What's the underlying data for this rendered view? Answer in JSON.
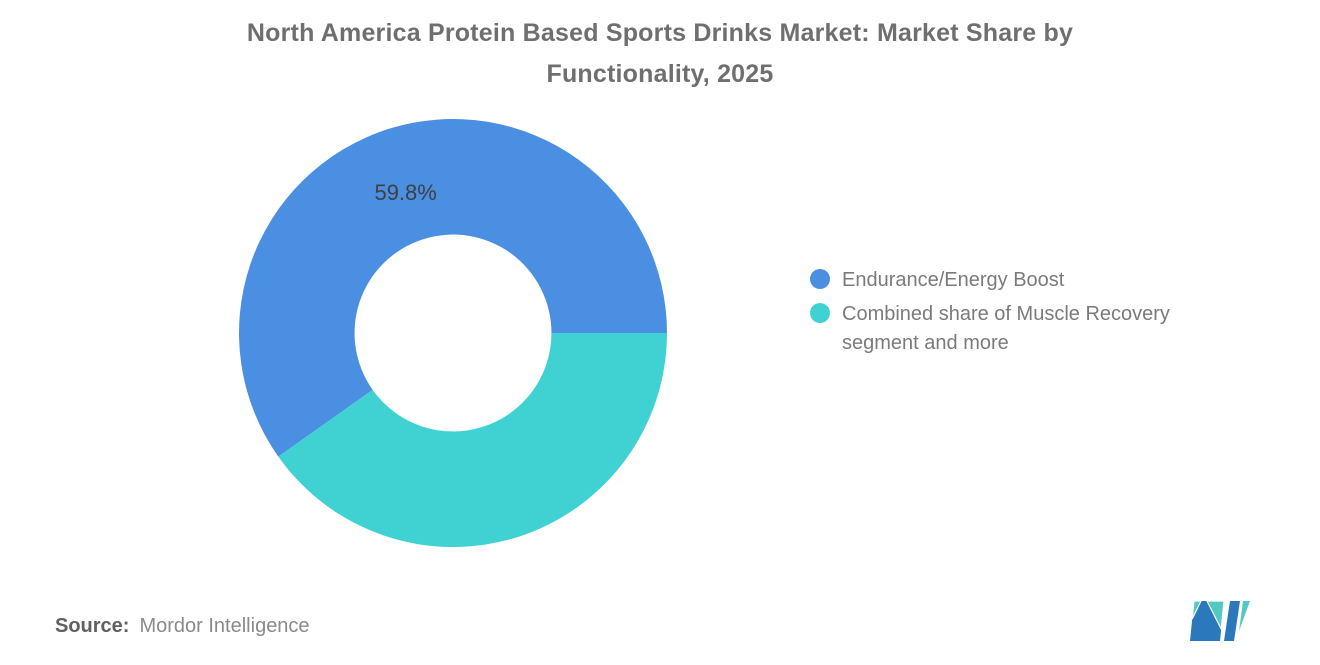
{
  "title": {
    "line1": "North America Protein Based Sports Drinks Market: Market Share by",
    "line2": "Functionality, 2025",
    "full": "North America Protein Based Sports Drinks Market: Market Share by Functionality, 2025"
  },
  "chart_data": {
    "type": "pie",
    "subtype": "donut",
    "title": "North America Protein Based Sports Drinks Market: Market Share by Functionality, 2025",
    "unit": "%",
    "segments": [
      {
        "label": "Endurance/Energy Boost",
        "value": 59.8,
        "color": "#4B8FE2",
        "data_label": "59.8%"
      },
      {
        "label": "Combined share of Muscle Recovery segment and more",
        "value": 40.2,
        "color": "#40D1D2",
        "data_label": ""
      }
    ],
    "start_angle_deg": 0,
    "direction": "counterclockwise",
    "inner_radius_ratio": 0.46,
    "legend_position": "right",
    "data_label_color": "#3F3F3F",
    "grid": false
  },
  "legend": {
    "items": [
      {
        "label": "Endurance/Energy Boost",
        "color": "#4B8FE2"
      },
      {
        "label": "Combined share of Muscle Recovery segment and more",
        "color": "#40D1D2"
      }
    ]
  },
  "source": {
    "label": "Source:",
    "value": "Mordor Intelligence"
  },
  "logo": {
    "name": "mordor-intelligence-logo",
    "blue": "#2B79BC",
    "teal": "#53C9C3"
  },
  "colors": {
    "background": "#FFFFFF",
    "title_text": "#6F6F6F",
    "legend_text": "#7B7B7B",
    "source_label_text": "#606060",
    "source_value_text": "#8A8A8A"
  }
}
